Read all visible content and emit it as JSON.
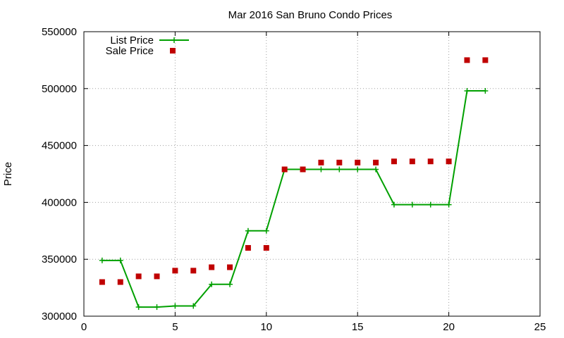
{
  "chart_data": {
    "type": "line",
    "title": "Mar 2016 San Bruno Condo Prices",
    "xlabel": "",
    "ylabel": "Price",
    "xlim": [
      0,
      25
    ],
    "ylim": [
      300000,
      550000
    ],
    "x_ticks": [
      0,
      5,
      10,
      15,
      20,
      25
    ],
    "y_ticks": [
      300000,
      350000,
      400000,
      450000,
      500000,
      550000
    ],
    "grid": true,
    "legend_position": "top-left",
    "x": [
      1,
      2,
      3,
      4,
      5,
      6,
      7,
      8,
      9,
      10,
      11,
      12,
      13,
      14,
      15,
      16,
      17,
      18,
      19,
      20,
      21,
      22
    ],
    "series": [
      {
        "name": "List Price",
        "style": "line-with-plus-markers",
        "color": "#00a000",
        "values": [
          349000,
          349000,
          308000,
          308000,
          309000,
          309000,
          328000,
          328000,
          375000,
          375000,
          429000,
          429000,
          429000,
          429000,
          429000,
          429000,
          398000,
          398000,
          398000,
          398000,
          498000,
          498000
        ]
      },
      {
        "name": "Sale Price",
        "style": "square-markers",
        "color": "#c00000",
        "values": [
          330000,
          330000,
          335000,
          335000,
          340000,
          340000,
          343000,
          343000,
          360000,
          360000,
          429000,
          429000,
          435000,
          435000,
          435000,
          435000,
          436000,
          436000,
          436000,
          436000,
          525000,
          525000
        ]
      }
    ]
  }
}
